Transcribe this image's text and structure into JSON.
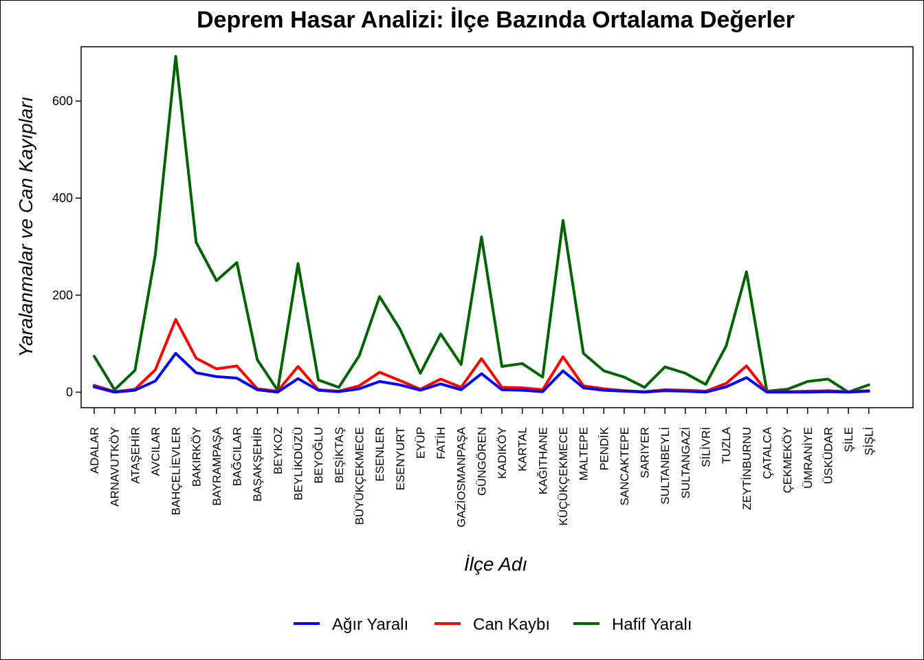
{
  "chart_data": {
    "type": "line",
    "title": "Deprem Hasar Analizi: İlçe Bazında Ortalama Değerler",
    "xlabel": "İlçe Adı",
    "ylabel": "Yaralanmalar ve Can Kayıpları",
    "ylim": [
      -32,
      712
    ],
    "yticks": [
      0,
      200,
      400,
      600
    ],
    "legend_position": "bottom",
    "grid": false,
    "categories": [
      "ADALAR",
      "ARNAVUTKÖY",
      "ATAŞEHİR",
      "AVCILAR",
      "BAHÇELİEVLER",
      "BAKIRKÖY",
      "BAYRAMPAŞA",
      "BAĞCILAR",
      "BAŞAKŞEHİR",
      "BEYKOZ",
      "BEYLİKDÜZÜ",
      "BEYOĞLU",
      "BEŞİKTAŞ",
      "BÜYÜKÇEKMECE",
      "ESENLER",
      "ESENYURT",
      "EYÜP",
      "FATİH",
      "GAZİOSMANPAŞA",
      "GÜNGÖREN",
      "KADIKÖY",
      "KARTAL",
      "KAĞITHANE",
      "KÜÇÜKÇEKMECE",
      "MALTEPE",
      "PENDİK",
      "SANCAKTEPE",
      "SARIYER",
      "SULTANBEYLİ",
      "SULTANGAZİ",
      "SİLİVRİ",
      "TUZLA",
      "ZEYTİNBURNU",
      "ÇATALCA",
      "ÇEKMEKÖY",
      "ÜMRANİYE",
      "ÜSKÜDAR",
      "ŞİLE",
      "ŞİŞLİ"
    ],
    "series": [
      {
        "name": "Ağır Yaralı",
        "color": "#0000ff",
        "values": [
          11,
          0,
          4,
          23,
          80,
          40,
          32,
          29,
          5,
          0,
          28,
          4,
          1,
          7,
          22,
          15,
          4,
          17,
          5,
          38,
          5,
          4,
          1,
          44,
          9,
          4,
          2,
          0,
          3,
          2,
          0,
          11,
          30,
          0,
          0,
          0,
          1,
          0,
          2
        ]
      },
      {
        "name": "Can Kaybı",
        "color": "#ff0000",
        "values": [
          14,
          1,
          6,
          46,
          150,
          70,
          48,
          54,
          7,
          2,
          53,
          5,
          2,
          13,
          41,
          24,
          6,
          27,
          10,
          69,
          10,
          9,
          5,
          73,
          13,
          7,
          3,
          1,
          5,
          4,
          2,
          18,
          54,
          1,
          1,
          2,
          3,
          1,
          3
        ]
      },
      {
        "name": "Hafif Yaralı",
        "color": "#006400",
        "values": [
          74,
          5,
          45,
          283,
          692,
          309,
          230,
          267,
          67,
          4,
          265,
          25,
          10,
          75,
          197,
          130,
          39,
          120,
          57,
          320,
          53,
          59,
          31,
          354,
          80,
          44,
          31,
          10,
          52,
          39,
          16,
          95,
          248,
          2,
          6,
          22,
          27,
          0,
          15
        ]
      }
    ]
  }
}
